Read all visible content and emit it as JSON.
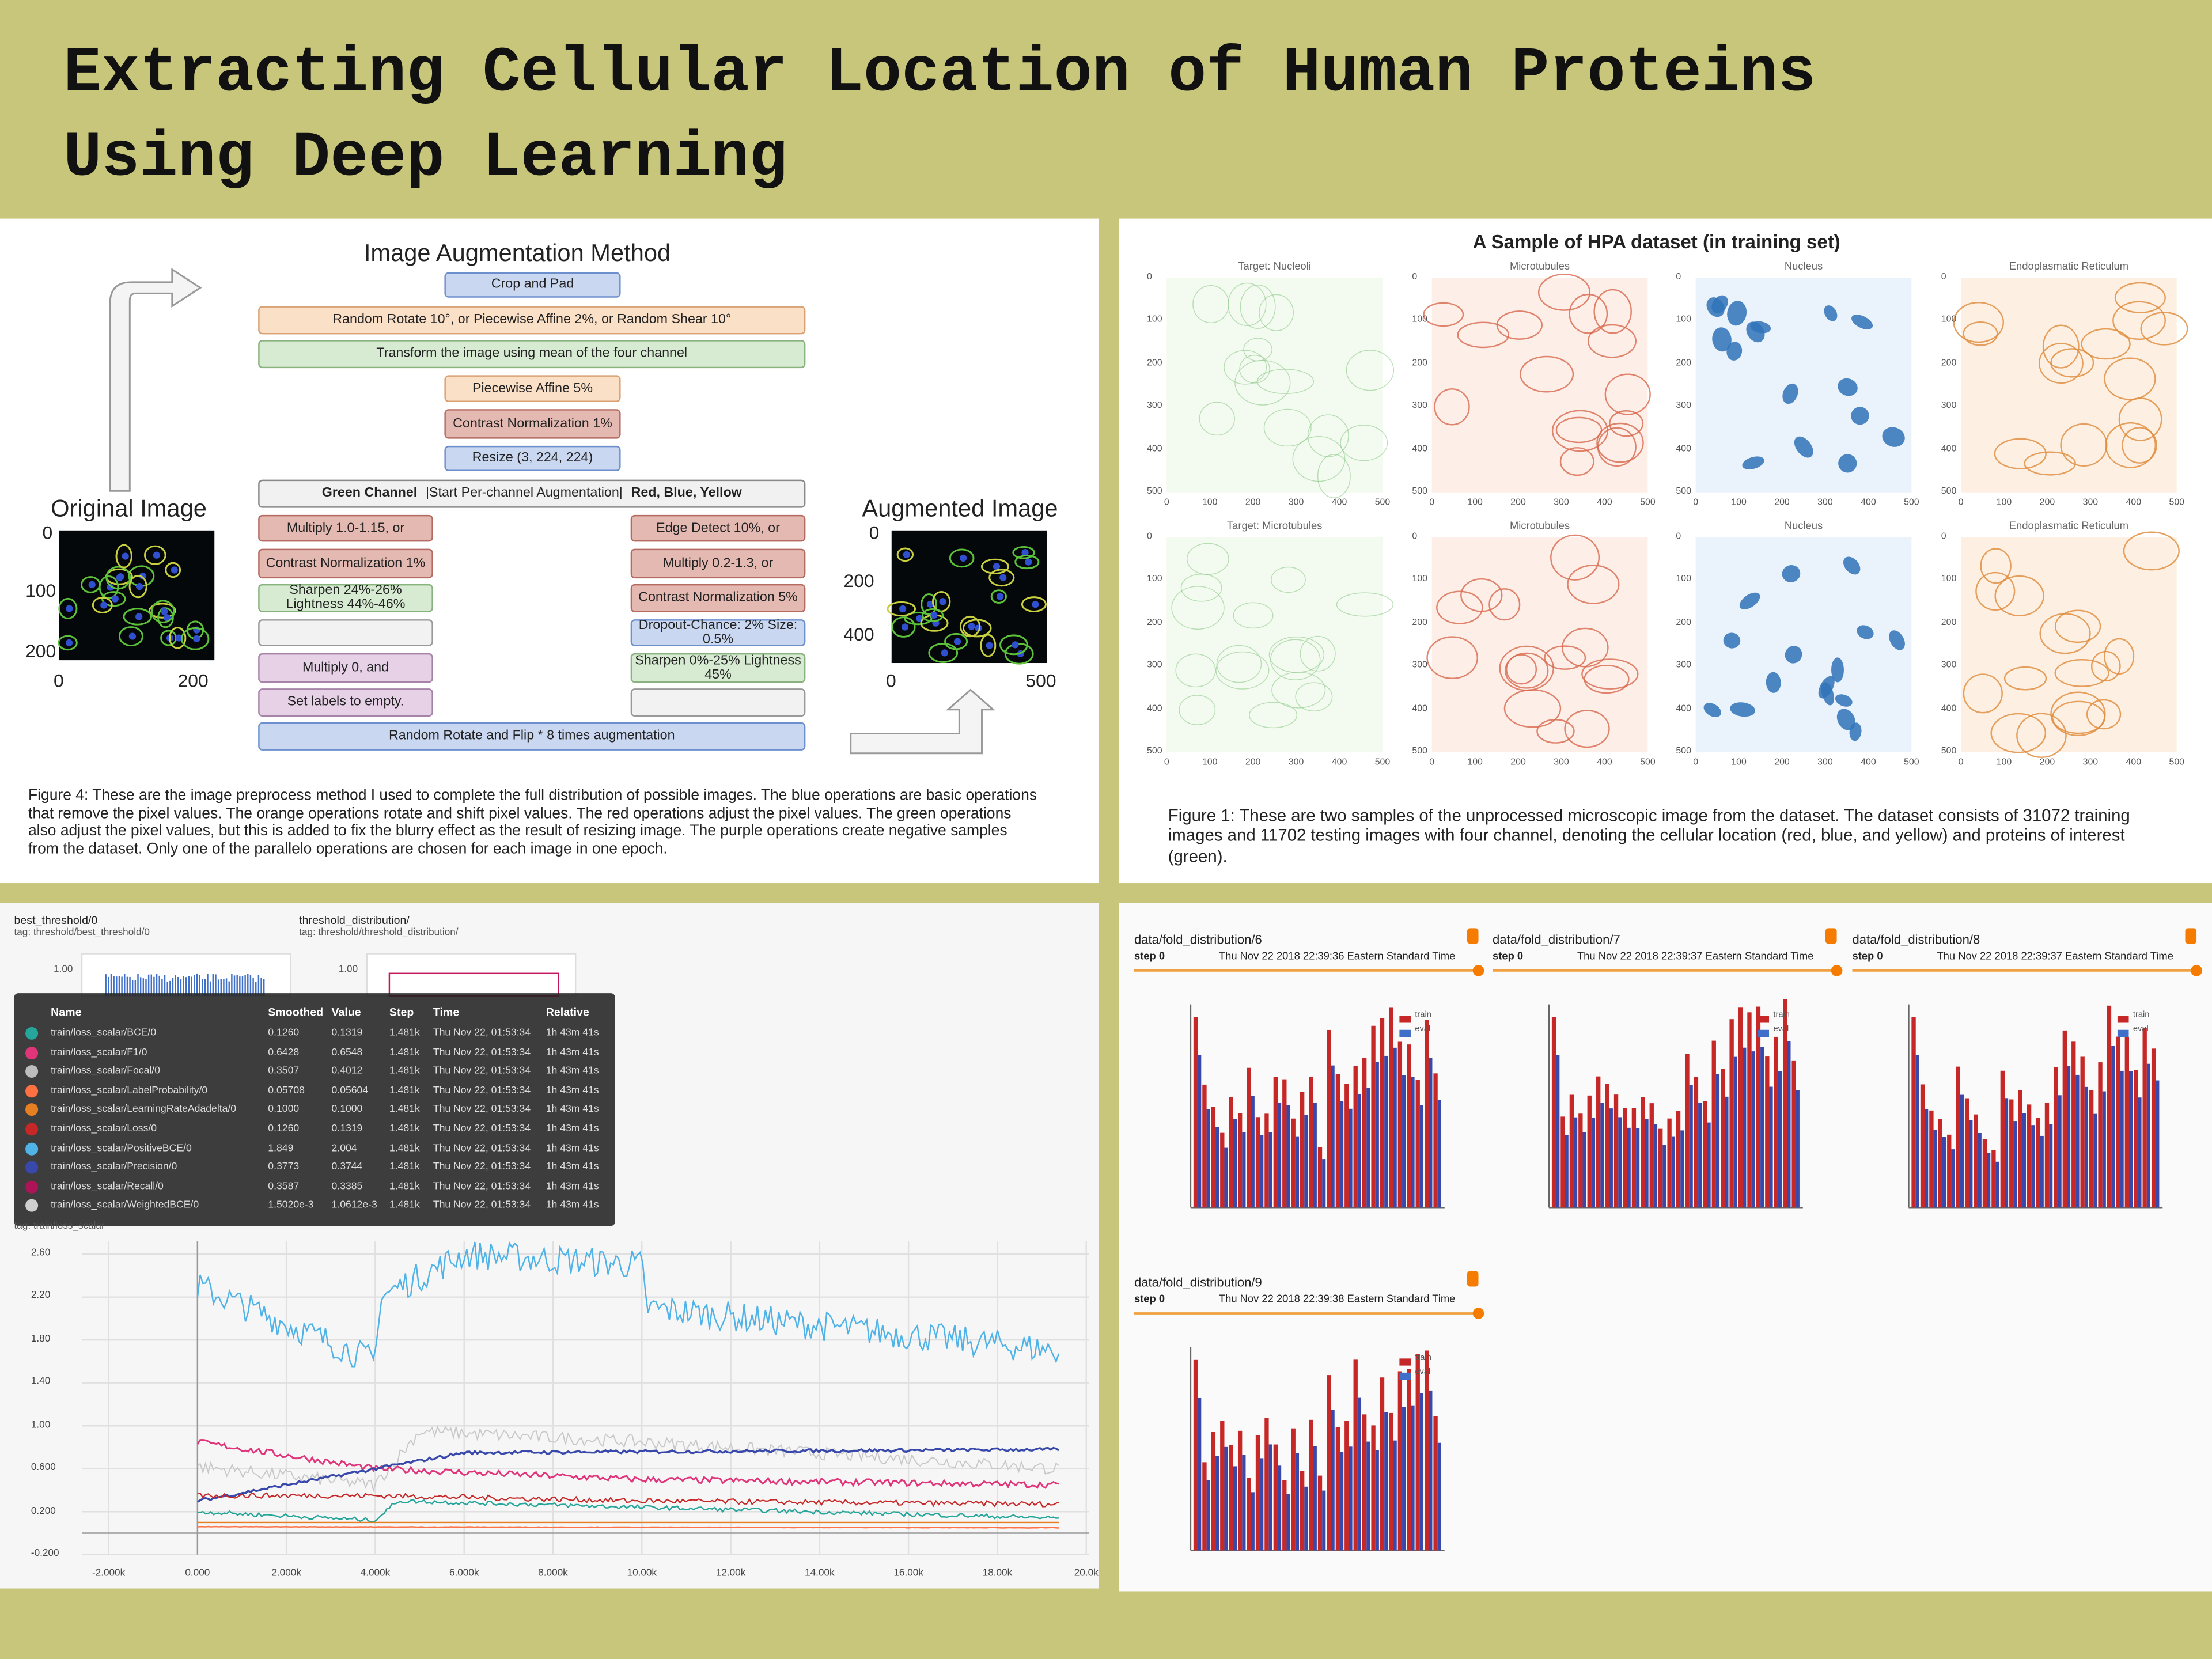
{
  "header": {
    "title_lines": [
      "Extracting Cellular Location of Human Proteins",
      "Using Deep Learning"
    ]
  },
  "augmentation": {
    "title": "Image Augmentation Method",
    "original_label": "Original Image",
    "augmented_label": "Augmented Image",
    "original_xticks": [
      "0",
      "200"
    ],
    "original_yticks": [
      "0",
      "100",
      "200"
    ],
    "augmented_xticks": [
      "0",
      "500"
    ],
    "augmented_yticks": [
      "0",
      "200",
      "400"
    ],
    "steps": [
      {
        "text": "Crop and Pad",
        "fill": "#c9d7f1",
        "stroke": "#6d8fce"
      },
      {
        "text": "Random Rotate 10°, or Piecewise Affine 2%, or Random Shear 10°",
        "fill": "#fbe0c8",
        "stroke": "#d9a072"
      },
      {
        "text": "Transform the image using mean of the four channel",
        "fill": "#d7ead2",
        "stroke": "#88b27e"
      },
      {
        "text": "Piecewise Affine 5%",
        "fill": "#fbe0c8",
        "stroke": "#d9a072"
      },
      {
        "text": "Contrast Normalization 1%",
        "fill": "#e4b9b2",
        "stroke": "#b56a60"
      },
      {
        "text": "Resize (3, 224, 224)",
        "fill": "#c9d7f1",
        "stroke": "#6d8fce"
      }
    ],
    "channel_bar": [
      "Green Channel",
      "|Start Per-channel Augmentation|",
      "Red, Blue, Yellow"
    ],
    "left_column": [
      {
        "text": "Multiply 1.0-1.15, or",
        "fill": "#e4b9b2",
        "stroke": "#b56a60"
      },
      {
        "text": "Contrast Normalization 1%",
        "fill": "#e4b9b2",
        "stroke": "#b56a60"
      },
      {
        "text": "Sharpen 24%-26% Lightness 44%-46%",
        "fill": "#d7ead2",
        "stroke": "#88b27e"
      },
      {
        "text": "Multiply 0, and",
        "fill": "#e6d1e6",
        "stroke": "#a883a8"
      },
      {
        "text": "Set labels to empty.",
        "fill": "#e6d1e6",
        "stroke": "#a883a8"
      }
    ],
    "right_column": [
      {
        "text": "Edge Detect 10%, or",
        "fill": "#e4b9b2",
        "stroke": "#b56a60"
      },
      {
        "text": "Multiply 0.2-1.3, or",
        "fill": "#e4b9b2",
        "stroke": "#b56a60"
      },
      {
        "text": "Contrast Normalization 5%",
        "fill": "#e4b9b2",
        "stroke": "#b56a60"
      },
      {
        "text": "Dropout-Chance: 2% Size: 0.5%",
        "fill": "#c9d7f1",
        "stroke": "#6d8fce"
      },
      {
        "text": "Sharpen 0%-25% Lightness 45%",
        "fill": "#d7ead2",
        "stroke": "#88b27e"
      }
    ],
    "final": {
      "text": "Random Rotate and Flip * 8 times augmentation",
      "fill": "#c9d7f1",
      "stroke": "#6d8fce"
    },
    "caption": "Figure 4: These are the image preprocess method I used to complete the full distribution of possible images. The blue operations are basic operations that remove the pixel values. The orange operations rotate and shift pixel values. The red operations adjust the pixel values. The green operations also adjust the pixel values, but this is added to fix the blurry effect as the result of resizing image. The purple operations create negative samples from the dataset. Only one of the parallelo operations are chosen for each image in one epoch."
  },
  "dataset": {
    "title": "A Sample of HPA dataset (in training set)",
    "rows": [
      [
        "Target: Nucleoli",
        "Microtubules",
        "Nucleus",
        "Endoplasmatic Reticulum"
      ],
      [
        "Target: Microtubules",
        "Microtubules",
        "Nucleus",
        "Endoplasmatic Reticulum"
      ]
    ],
    "axis_ticks": [
      "0",
      "100",
      "200",
      "300",
      "400",
      "500"
    ],
    "caption": "Figure 1: These are two samples of the unprocessed microscopic image from the dataset. The dataset consists of 31072 training images and 11702 testing images with four channel, denoting the cellular location (red, blue, and yellow) and proteins of interest (green)."
  },
  "tensorboard": {
    "cards": [
      {
        "title": "best_threshold/0",
        "tag": "tag: threshold/best_threshold/0"
      },
      {
        "title": "threshold_distribution/",
        "tag": "tag: threshold/threshold_distribution/"
      }
    ],
    "small_tick": "1.00",
    "tag": "tag: train/loss_scalar",
    "columns": [
      "Name",
      "Smoothed",
      "Value",
      "Step",
      "Time",
      "Relative"
    ],
    "rows": [
      {
        "color": "#26a69a",
        "cells": [
          "train/loss_scalar/BCE/0",
          "0.1260",
          "0.1319",
          "1.481k",
          "Thu Nov 22, 01:53:34",
          "1h 43m 41s"
        ]
      },
      {
        "color": "#e0357a",
        "cells": [
          "train/loss_scalar/F1/0",
          "0.6428",
          "0.6548",
          "1.481k",
          "Thu Nov 22, 01:53:34",
          "1h 43m 41s"
        ]
      },
      {
        "color": "#bdbdbd",
        "cells": [
          "train/loss_scalar/Focal/0",
          "0.3507",
          "0.4012",
          "1.481k",
          "Thu Nov 22, 01:53:34",
          "1h 43m 41s"
        ]
      },
      {
        "color": "#ff7043",
        "cells": [
          "train/loss_scalar/LabelProbability/0",
          "0.05708",
          "0.05604",
          "1.481k",
          "Thu Nov 22, 01:53:34",
          "1h 43m 41s"
        ]
      },
      {
        "color": "#e67e22",
        "cells": [
          "train/loss_scalar/LearningRateAdadelta/0",
          "0.1000",
          "0.1000",
          "1.481k",
          "Thu Nov 22, 01:53:34",
          "1h 43m 41s"
        ]
      },
      {
        "color": "#c62828",
        "cells": [
          "train/loss_scalar/Loss/0",
          "0.1260",
          "0.1319",
          "1.481k",
          "Thu Nov 22, 01:53:34",
          "1h 43m 41s"
        ]
      },
      {
        "color": "#4fb3e8",
        "cells": [
          "train/loss_scalar/PositiveBCE/0",
          "1.849",
          "2.004",
          "1.481k",
          "Thu Nov 22, 01:53:34",
          "1h 43m 41s"
        ]
      },
      {
        "color": "#3949ab",
        "cells": [
          "train/loss_scalar/Precision/0",
          "0.3773",
          "0.3744",
          "1.481k",
          "Thu Nov 22, 01:53:34",
          "1h 43m 41s"
        ]
      },
      {
        "color": "#ad1457",
        "cells": [
          "train/loss_scalar/Recall/0",
          "0.3587",
          "0.3385",
          "1.481k",
          "Thu Nov 22, 01:53:34",
          "1h 43m 41s"
        ]
      },
      {
        "color": "#cfcfcf",
        "cells": [
          "train/loss_scalar/WeightedBCE/0",
          "1.5020e-3",
          "1.0612e-3",
          "1.481k",
          "Thu Nov 22, 01:53:34",
          "1h 43m 41s"
        ]
      }
    ],
    "yticks": [
      "2.60",
      "2.20",
      "1.80",
      "1.40",
      "1.00",
      "0.600",
      "0.200",
      "-0.200"
    ],
    "xticks": [
      "-2.000k",
      "0.000",
      "2.000k",
      "4.000k",
      "6.000k",
      "8.000k",
      "10.00k",
      "12.00k",
      "14.00k",
      "16.00k",
      "18.00k",
      "20.0k"
    ]
  },
  "histograms": {
    "legend": [
      "train",
      "eval"
    ],
    "cards": [
      {
        "title": "data/fold_distribution/6",
        "step": "step 0",
        "time": "Thu Nov 22 2018 22:39:36 Eastern Standard Time"
      },
      {
        "title": "data/fold_distribution/7",
        "step": "step 0",
        "time": "Thu Nov 22 2018 22:39:37 Eastern Standard Time"
      },
      {
        "title": "data/fold_distribution/8",
        "step": "step 0",
        "time": "Thu Nov 22 2018 22:39:37 Eastern Standard Time"
      },
      {
        "title": "data/fold_distribution/9",
        "step": "step 0",
        "time": "Thu Nov 22 2018 22:39:38 Eastern Standard Time"
      }
    ]
  }
}
